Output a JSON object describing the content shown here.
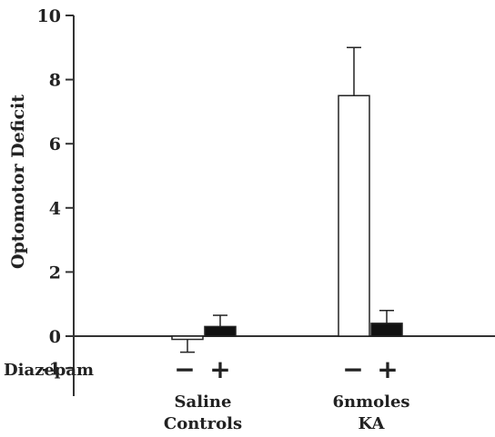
{
  "chart_data": {
    "type": "bar",
    "title": "",
    "xlabel": "",
    "ylabel": "Optomotor Deficit",
    "ylim": [
      -1,
      10
    ],
    "yticks": [
      {
        "value": 10,
        "label": "10"
      },
      {
        "value": 8,
        "label": "8"
      },
      {
        "value": 6,
        "label": "6"
      },
      {
        "value": 4,
        "label": "4"
      },
      {
        "value": 2,
        "label": "2"
      },
      {
        "value": 0,
        "label": "0"
      },
      {
        "value": -1,
        "label": "-1"
      }
    ],
    "grid": false,
    "legend": "none",
    "row_label": "Diazepam",
    "groups": [
      {
        "label_lines": [
          "Saline",
          "Controls"
        ],
        "signs": [
          "−",
          "+"
        ]
      },
      {
        "label_lines": [
          "6nmoles",
          "KA"
        ],
        "signs": [
          "−",
          "+"
        ]
      }
    ],
    "bars": [
      {
        "group": 0,
        "condition": "−",
        "value": -0.1,
        "error": 0.4,
        "fill": "white",
        "color": "#ffffff"
      },
      {
        "group": 0,
        "condition": "+",
        "value": 0.3,
        "error": 0.35,
        "fill": "solid",
        "color": "#111111"
      },
      {
        "group": 1,
        "condition": "−",
        "value": 7.5,
        "error": 1.5,
        "fill": "white",
        "color": "#ffffff"
      },
      {
        "group": 1,
        "condition": "+",
        "value": 0.4,
        "error": 0.4,
        "fill": "solid",
        "color": "#111111"
      }
    ],
    "colors": {
      "axis": "#333333",
      "text": "#222222",
      "solid_bar": "#111111",
      "open_bar": "#ffffff"
    }
  }
}
